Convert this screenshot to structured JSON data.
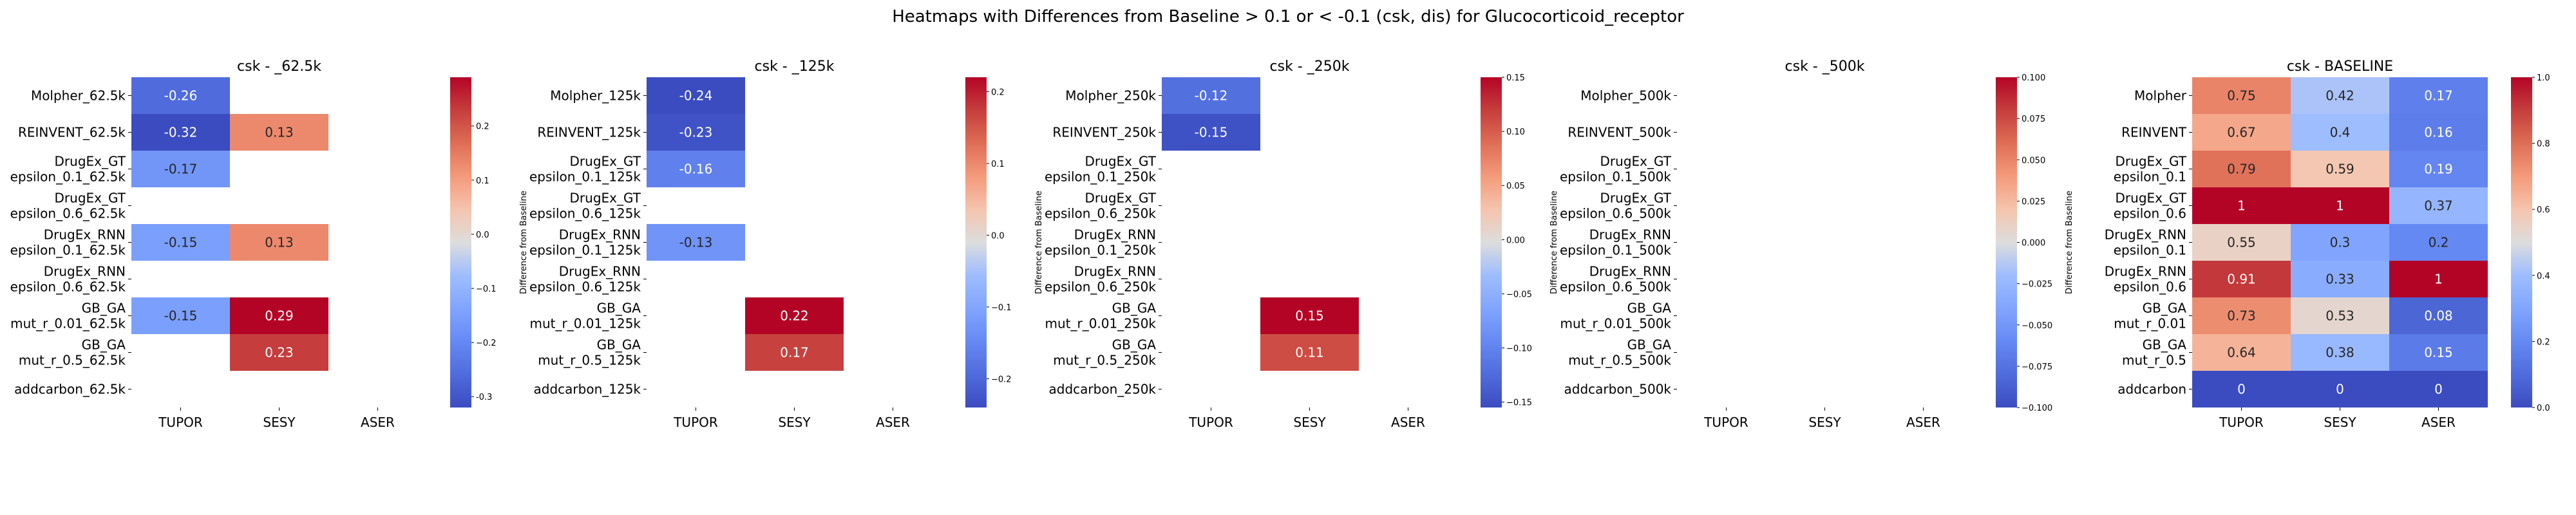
{
  "chart_data": {
    "type": "heatmap",
    "title": "Heatmaps with Differences from Baseline > 0.1 or < -0.1 (csk, dis) for Glucocorticoid_receptor",
    "colormap": "coolwarm",
    "panels": [
      {
        "title": "csk - _62.5k",
        "x_categories": [
          "TUPOR",
          "SESY",
          "ASER"
        ],
        "y_categories": [
          "Molpher_62.5k",
          "REINVENT_62.5k",
          "DrugEx_GT\nepsilon_0.1_62.5k",
          "DrugEx_GT\nepsilon_0.6_62.5k",
          "DrugEx_RNN\nepsilon_0.1_62.5k",
          "DrugEx_RNN\nepsilon_0.6_62.5k",
          "GB_GA\nmut_r_0.01_62.5k",
          "GB_GA\nmut_r_0.5_62.5k",
          "addcarbon_62.5k"
        ],
        "values": [
          [
            -0.26,
            null,
            null
          ],
          [
            -0.32,
            0.13,
            null
          ],
          [
            -0.17,
            null,
            null
          ],
          [
            null,
            null,
            null
          ],
          [
            -0.15,
            0.13,
            null
          ],
          [
            null,
            null,
            null
          ],
          [
            -0.15,
            0.29,
            null
          ],
          [
            null,
            0.23,
            null
          ],
          [
            null,
            null,
            null
          ]
        ],
        "cell_labels": [
          [
            "-0.26",
            "",
            ""
          ],
          [
            "-0.32",
            "0.13",
            ""
          ],
          [
            "-0.17",
            "",
            ""
          ],
          [
            "",
            "",
            ""
          ],
          [
            "-0.15",
            "0.13",
            ""
          ],
          [
            "",
            "",
            ""
          ],
          [
            "-0.15",
            "0.29",
            ""
          ],
          [
            "",
            "0.23",
            ""
          ],
          [
            "",
            "",
            ""
          ]
        ],
        "vmin": -0.32,
        "vmax": 0.29,
        "colorbar": {
          "label": "Difference from Baseline",
          "ticks": [
            "-0.3",
            "−0.2",
            "−0.1",
            "0.0",
            "0.1",
            "0.2"
          ],
          "tick_values": [
            -0.3,
            -0.2,
            -0.1,
            0.0,
            0.1,
            0.2
          ]
        }
      },
      {
        "title": "csk - _125k",
        "x_categories": [
          "TUPOR",
          "SESY",
          "ASER"
        ],
        "y_categories": [
          "Molpher_125k",
          "REINVENT_125k",
          "DrugEx_GT\nepsilon_0.1_125k",
          "DrugEx_GT\nepsilon_0.6_125k",
          "DrugEx_RNN\nepsilon_0.1_125k",
          "DrugEx_RNN\nepsilon_0.6_125k",
          "GB_GA\nmut_r_0.01_125k",
          "GB_GA\nmut_r_0.5_125k",
          "addcarbon_125k"
        ],
        "values": [
          [
            -0.24,
            null,
            null
          ],
          [
            -0.23,
            null,
            null
          ],
          [
            -0.16,
            null,
            null
          ],
          [
            null,
            null,
            null
          ],
          [
            -0.13,
            null,
            null
          ],
          [
            null,
            null,
            null
          ],
          [
            null,
            0.22,
            null
          ],
          [
            null,
            0.17,
            null
          ],
          [
            null,
            null,
            null
          ]
        ],
        "cell_labels": [
          [
            "-0.24",
            "",
            ""
          ],
          [
            "-0.23",
            "",
            ""
          ],
          [
            "-0.16",
            "",
            ""
          ],
          [
            "",
            "",
            ""
          ],
          [
            "-0.13",
            "",
            ""
          ],
          [
            "",
            "",
            ""
          ],
          [
            "",
            "0.22",
            ""
          ],
          [
            "",
            "0.17",
            ""
          ],
          [
            "",
            "",
            ""
          ]
        ],
        "vmin": -0.24,
        "vmax": 0.22,
        "colorbar": {
          "label": "Difference from Baseline",
          "ticks": [
            "−0.2",
            "−0.1",
            "0.0",
            "0.1",
            "0.2"
          ],
          "tick_values": [
            -0.2,
            -0.1,
            0.0,
            0.1,
            0.2
          ]
        }
      },
      {
        "title": "csk - _250k",
        "x_categories": [
          "TUPOR",
          "SESY",
          "ASER"
        ],
        "y_categories": [
          "Molpher_250k",
          "REINVENT_250k",
          "DrugEx_GT\nepsilon_0.1_250k",
          "DrugEx_GT\nepsilon_0.6_250k",
          "DrugEx_RNN\nepsilon_0.1_250k",
          "DrugEx_RNN\nepsilon_0.6_250k",
          "GB_GA\nmut_r_0.01_250k",
          "GB_GA\nmut_r_0.5_250k",
          "addcarbon_250k"
        ],
        "values": [
          [
            -0.12,
            null,
            null
          ],
          [
            -0.15,
            null,
            null
          ],
          [
            null,
            null,
            null
          ],
          [
            null,
            null,
            null
          ],
          [
            null,
            null,
            null
          ],
          [
            null,
            null,
            null
          ],
          [
            null,
            0.15,
            null
          ],
          [
            null,
            0.11,
            null
          ],
          [
            null,
            null,
            null
          ]
        ],
        "cell_labels": [
          [
            "-0.12",
            "",
            ""
          ],
          [
            "-0.15",
            "",
            ""
          ],
          [
            "",
            "",
            ""
          ],
          [
            "",
            "",
            ""
          ],
          [
            "",
            "",
            ""
          ],
          [
            "",
            "",
            ""
          ],
          [
            "",
            "0.15",
            ""
          ],
          [
            "",
            "0.11",
            ""
          ],
          [
            "",
            "",
            ""
          ]
        ],
        "vmin": -0.155,
        "vmax": 0.15,
        "colorbar": {
          "label": "Difference from Baseline",
          "ticks": [
            "−0.15",
            "−0.10",
            "−0.05",
            "0.00",
            "0.05",
            "0.10",
            "0.15"
          ],
          "tick_values": [
            -0.15,
            -0.1,
            -0.05,
            0.0,
            0.05,
            0.1,
            0.15
          ]
        }
      },
      {
        "title": "csk - _500k",
        "x_categories": [
          "TUPOR",
          "SESY",
          "ASER"
        ],
        "y_categories": [
          "Molpher_500k",
          "REINVENT_500k",
          "DrugEx_GT\nepsilon_0.1_500k",
          "DrugEx_GT\nepsilon_0.6_500k",
          "DrugEx_RNN\nepsilon_0.1_500k",
          "DrugEx_RNN\nepsilon_0.6_500k",
          "GB_GA\nmut_r_0.01_500k",
          "GB_GA\nmut_r_0.5_500k",
          "addcarbon_500k"
        ],
        "values": [
          [
            null,
            null,
            null
          ],
          [
            null,
            null,
            null
          ],
          [
            null,
            null,
            null
          ],
          [
            null,
            null,
            null
          ],
          [
            null,
            null,
            null
          ],
          [
            null,
            null,
            null
          ],
          [
            null,
            null,
            null
          ],
          [
            null,
            null,
            null
          ],
          [
            null,
            null,
            null
          ]
        ],
        "cell_labels": [
          [
            "",
            "",
            ""
          ],
          [
            "",
            "",
            ""
          ],
          [
            "",
            "",
            ""
          ],
          [
            "",
            "",
            ""
          ],
          [
            "",
            "",
            ""
          ],
          [
            "",
            "",
            ""
          ],
          [
            "",
            "",
            ""
          ],
          [
            "",
            "",
            ""
          ],
          [
            "",
            "",
            ""
          ]
        ],
        "vmin": -0.1,
        "vmax": 0.1,
        "colorbar": {
          "label": "Difference from Baseline",
          "ticks": [
            "−0.100",
            "−0.075",
            "−0.050",
            "−0.025",
            "0.000",
            "0.025",
            "0.050",
            "0.075",
            "0.100"
          ],
          "tick_values": [
            -0.1,
            -0.075,
            -0.05,
            -0.025,
            0.0,
            0.025,
            0.05,
            0.075,
            0.1
          ]
        }
      },
      {
        "title": "csk - BASELINE",
        "x_categories": [
          "TUPOR",
          "SESY",
          "ASER"
        ],
        "y_categories": [
          "Molpher",
          "REINVENT",
          "DrugEx_GT\nepsilon_0.1",
          "DrugEx_GT\nepsilon_0.6",
          "DrugEx_RNN\nepsilon_0.1",
          "DrugEx_RNN\nepsilon_0.6",
          "GB_GA\nmut_r_0.01",
          "GB_GA\nmut_r_0.5",
          "addcarbon"
        ],
        "values": [
          [
            0.75,
            0.42,
            0.17
          ],
          [
            0.67,
            0.4,
            0.16
          ],
          [
            0.79,
            0.59,
            0.19
          ],
          [
            1,
            1,
            0.37
          ],
          [
            0.55,
            0.3,
            0.2
          ],
          [
            0.91,
            0.33,
            1
          ],
          [
            0.73,
            0.53,
            0.08
          ],
          [
            0.64,
            0.38,
            0.15
          ],
          [
            0,
            0,
            0
          ]
        ],
        "cell_labels": [
          [
            "0.75",
            "0.42",
            "0.17"
          ],
          [
            "0.67",
            "0.4",
            "0.16"
          ],
          [
            "0.79",
            "0.59",
            "0.19"
          ],
          [
            "1",
            "1",
            "0.37"
          ],
          [
            "0.55",
            "0.3",
            "0.2"
          ],
          [
            "0.91",
            "0.33",
            "1"
          ],
          [
            "0.73",
            "0.53",
            "0.08"
          ],
          [
            "0.64",
            "0.38",
            "0.15"
          ],
          [
            "0",
            "0",
            "0"
          ]
        ],
        "vmin": 0.0,
        "vmax": 1.0,
        "colorbar": {
          "label": "Difference from Baseline",
          "ticks": [
            "0.0",
            "0.2",
            "0.4",
            "0.6",
            "0.8",
            "1.0"
          ],
          "tick_values": [
            0.0,
            0.2,
            0.4,
            0.6,
            0.8,
            1.0
          ]
        }
      }
    ]
  }
}
